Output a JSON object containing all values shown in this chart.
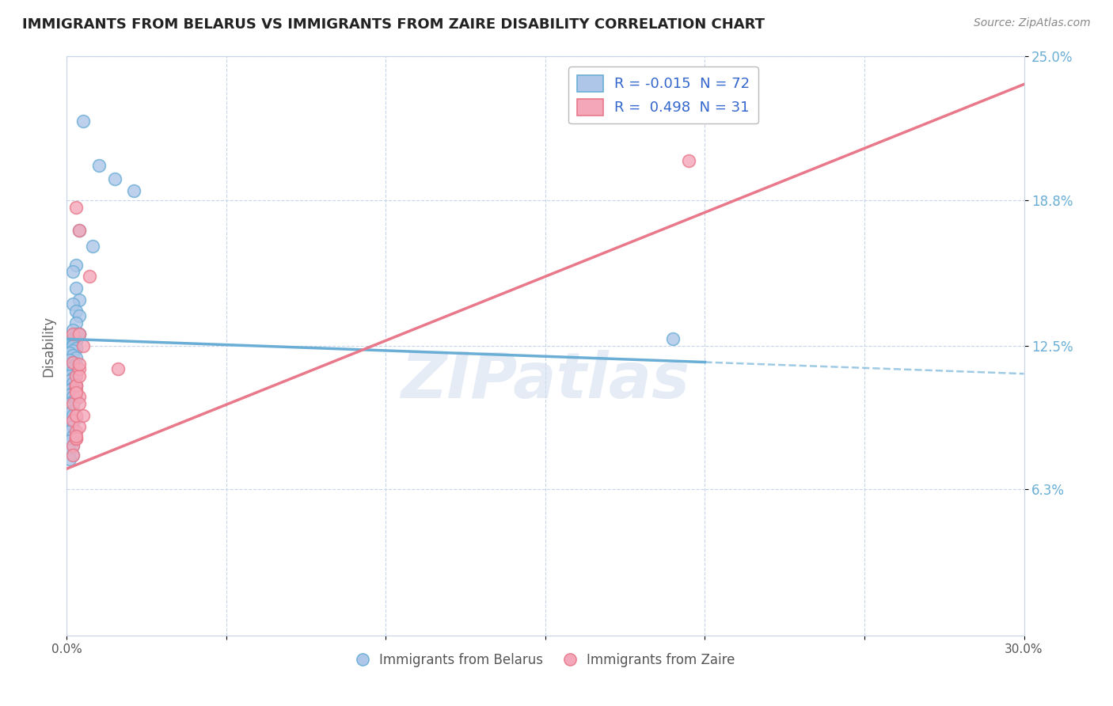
{
  "title": "IMMIGRANTS FROM BELARUS VS IMMIGRANTS FROM ZAIRE DISABILITY CORRELATION CHART",
  "source": "Source: ZipAtlas.com",
  "ylabel": "Disability",
  "xlim": [
    0.0,
    0.3
  ],
  "ylim": [
    0.0,
    0.25
  ],
  "ytick_positions": [
    0.063,
    0.125,
    0.188,
    0.25
  ],
  "ytick_labels": [
    "6.3%",
    "12.5%",
    "18.8%",
    "25.0%"
  ],
  "xtick_positions": [
    0.0,
    0.05,
    0.1,
    0.15,
    0.2,
    0.25,
    0.3
  ],
  "xtick_labels": [
    "0.0%",
    "",
    "",
    "",
    "",
    "",
    "30.0%"
  ],
  "legend_items": [
    {
      "label": "R = -0.015  N = 72",
      "color": "#aec6e8"
    },
    {
      "label": "R =  0.498  N = 31",
      "color": "#f4a7b9"
    }
  ],
  "legend_bottom": [
    "Immigrants from Belarus",
    "Immigrants from Zaire"
  ],
  "blue_color": "#6aaed6",
  "pink_color": "#e8788a",
  "blue_fill": "#aec6e8",
  "pink_fill": "#f4a7b9",
  "watermark": "ZIPatlas",
  "grid_color": "#c8d4e8",
  "blue_line_solid_end": 0.2,
  "blue_line_start_y": 0.128,
  "blue_line_end_y": 0.113,
  "pink_line_start_y": 0.072,
  "pink_line_end_y": 0.238,
  "belarus_x": [
    0.005,
    0.01,
    0.015,
    0.021,
    0.004,
    0.008,
    0.003,
    0.002,
    0.003,
    0.004,
    0.002,
    0.003,
    0.004,
    0.003,
    0.002,
    0.003,
    0.002,
    0.001,
    0.004,
    0.003,
    0.002,
    0.003,
    0.001,
    0.002,
    0.003,
    0.004,
    0.003,
    0.002,
    0.001,
    0.003,
    0.002,
    0.003,
    0.002,
    0.001,
    0.002,
    0.003,
    0.001,
    0.002,
    0.003,
    0.002,
    0.001,
    0.002,
    0.003,
    0.001,
    0.002,
    0.001,
    0.002,
    0.003,
    0.002,
    0.001,
    0.002,
    0.001,
    0.002,
    0.003,
    0.002,
    0.001,
    0.002,
    0.001,
    0.002,
    0.001,
    0.002,
    0.003,
    0.001,
    0.002,
    0.001,
    0.002,
    0.001,
    0.002,
    0.001,
    0.002,
    0.001,
    0.19
  ],
  "belarus_y": [
    0.222,
    0.203,
    0.197,
    0.192,
    0.175,
    0.168,
    0.16,
    0.157,
    0.15,
    0.145,
    0.143,
    0.14,
    0.138,
    0.135,
    0.132,
    0.13,
    0.128,
    0.127,
    0.13,
    0.128,
    0.126,
    0.124,
    0.123,
    0.125,
    0.128,
    0.13,
    0.127,
    0.124,
    0.122,
    0.127,
    0.125,
    0.124,
    0.123,
    0.122,
    0.121,
    0.12,
    0.119,
    0.118,
    0.117,
    0.116,
    0.115,
    0.114,
    0.113,
    0.112,
    0.111,
    0.11,
    0.109,
    0.108,
    0.107,
    0.106,
    0.105,
    0.104,
    0.103,
    0.102,
    0.101,
    0.1,
    0.099,
    0.098,
    0.097,
    0.096,
    0.095,
    0.094,
    0.092,
    0.09,
    0.088,
    0.086,
    0.084,
    0.082,
    0.08,
    0.078,
    0.076,
    0.128
  ],
  "zaire_x": [
    0.004,
    0.007,
    0.002,
    0.003,
    0.003,
    0.005,
    0.002,
    0.003,
    0.004,
    0.003,
    0.002,
    0.003,
    0.004,
    0.003,
    0.004,
    0.003,
    0.002,
    0.004,
    0.003,
    0.002,
    0.004,
    0.003,
    0.016,
    0.004,
    0.003,
    0.004,
    0.003,
    0.002,
    0.003,
    0.005,
    0.195
  ],
  "zaire_y": [
    0.175,
    0.155,
    0.13,
    0.185,
    0.108,
    0.125,
    0.118,
    0.112,
    0.13,
    0.106,
    0.1,
    0.095,
    0.103,
    0.108,
    0.115,
    0.105,
    0.093,
    0.112,
    0.088,
    0.082,
    0.117,
    0.085,
    0.115,
    0.09,
    0.095,
    0.1,
    0.085,
    0.078,
    0.086,
    0.095,
    0.205
  ]
}
